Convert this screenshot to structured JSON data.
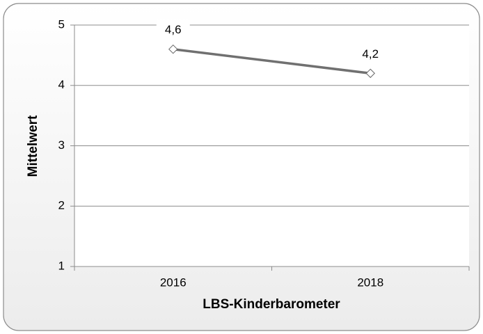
{
  "chart_data": {
    "type": "line",
    "categories": [
      "2016",
      "2018"
    ],
    "values": [
      4.6,
      4.2
    ],
    "value_labels": [
      "4,6",
      "4,2"
    ],
    "color": "#707070",
    "xlabel": "LBS-Kinderbarometer",
    "ylabel": "Mittelwert",
    "ylim": [
      1,
      5
    ],
    "yticks": [
      1,
      2,
      3,
      4,
      5
    ],
    "grid": true
  }
}
